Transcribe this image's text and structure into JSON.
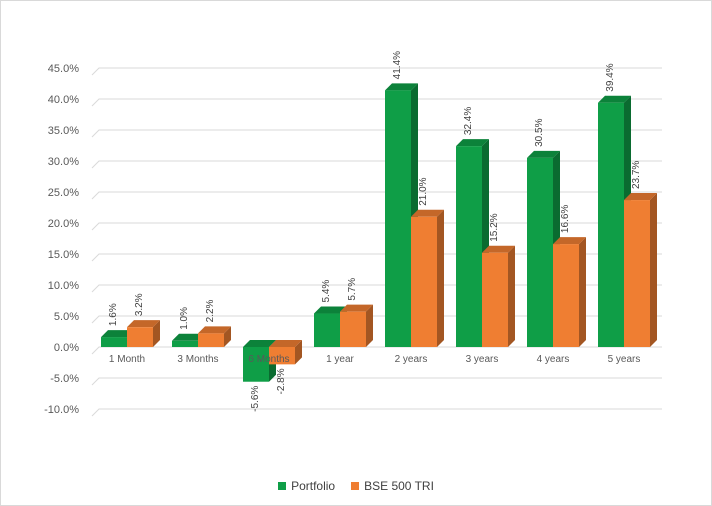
{
  "chart_data": {
    "type": "bar",
    "categories": [
      "1 Month",
      "3 Months",
      "6 Months",
      "1 year",
      "2 years",
      "3 years",
      "4 years",
      "5 years"
    ],
    "series": [
      {
        "name": "Portfolio",
        "values": [
          1.6,
          1.0,
          -5.6,
          5.4,
          41.4,
          32.4,
          30.5,
          39.4
        ],
        "labels": [
          "1.6%",
          "1.0%",
          "-5.6%",
          "5.4%",
          "41.4%",
          "32.4%",
          "30.5%",
          "39.4%"
        ],
        "color": "#0f9e47"
      },
      {
        "name": "BSE 500 TRI",
        "values": [
          3.2,
          2.2,
          -2.8,
          5.7,
          21.0,
          15.2,
          16.6,
          23.7
        ],
        "labels": [
          "3.2%",
          "2.2%",
          "-2.8%",
          "5.7%",
          "21.0%",
          "15.2%",
          "16.6%",
          "23.7%"
        ],
        "color": "#ef7e32"
      }
    ],
    "y_ticks": [
      45,
      40,
      35,
      30,
      25,
      20,
      15,
      10,
      5,
      0,
      -5,
      -10
    ],
    "y_tick_labels": [
      "45.0%",
      "40.0%",
      "35.0%",
      "30.0%",
      "25.0%",
      "20.0%",
      "15.0%",
      "10.0%",
      "5.0%",
      "0.0%",
      "-5.0%",
      "-10.0%"
    ],
    "ylim": [
      -10,
      45
    ],
    "grid": true,
    "legend_position": "bottom",
    "style": "3d-clustered-column"
  }
}
